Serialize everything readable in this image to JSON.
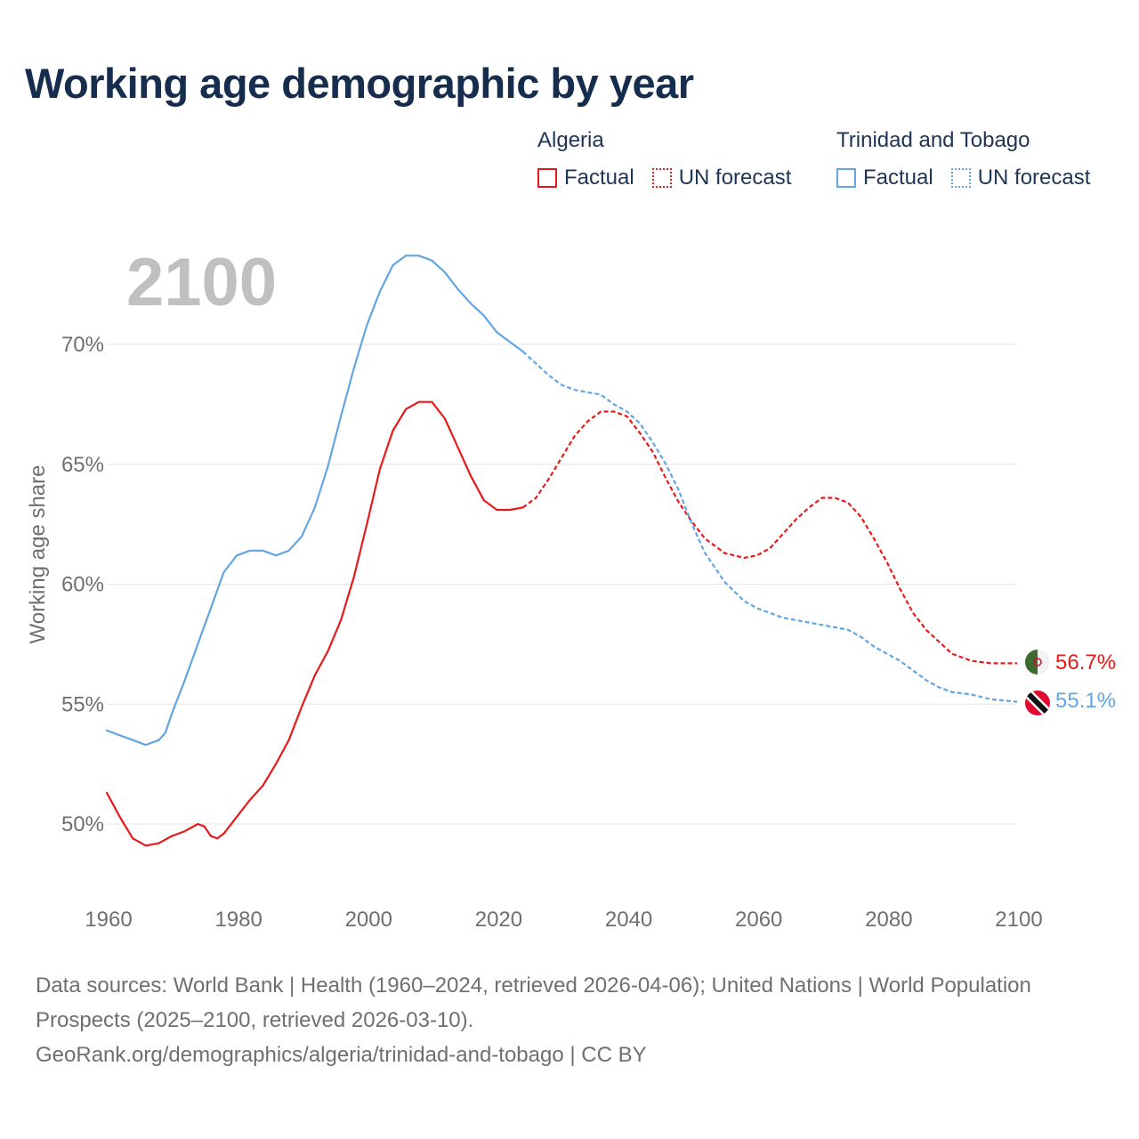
{
  "title": "Working age demographic by year",
  "legend": {
    "groups": [
      {
        "name": "Algeria",
        "color": "#e8191b",
        "items": [
          {
            "label": "Factual",
            "style": "solid"
          },
          {
            "label": "UN forecast",
            "style": "dotted"
          }
        ]
      },
      {
        "name": "Trinidad and Tobago",
        "color": "#63a5e3",
        "items": [
          {
            "label": "Factual",
            "style": "solid"
          },
          {
            "label": "UN forecast",
            "style": "dotted"
          }
        ]
      }
    ]
  },
  "year_overlay": "2100",
  "footer": {
    "sources": "Data sources: World Bank | Health (1960–2024, retrieved 2026-04-06); United Nations | World Population Prospects (2025–2100, retrieved 2026-03-10).",
    "credit": "GeoRank.org/demographics/algeria/trinidad-and-tobago | CC BY"
  },
  "chart_data": {
    "type": "line",
    "title": "Working age demographic by year",
    "xlabel": "",
    "ylabel": "Working age share",
    "xlim": [
      1960,
      2100
    ],
    "ylim": [
      47.5,
      75
    ],
    "x_ticks": [
      1960,
      1980,
      2000,
      2020,
      2040,
      2060,
      2080,
      2100
    ],
    "x_tick_labels": [
      "1960",
      "1980",
      "2000",
      "2020",
      "2040",
      "2060",
      "2080",
      "2100"
    ],
    "y_ticks": [
      50,
      55,
      60,
      65,
      70
    ],
    "y_tick_labels": [
      "50%",
      "55%",
      "60%",
      "65%",
      "70%"
    ],
    "grid": true,
    "forecast_start": 2024,
    "series": [
      {
        "name": "Algeria",
        "color": "#e8191b",
        "end_label": "56.7%",
        "flag": "algeria-flag",
        "x": [
          1960,
          1962,
          1964,
          1966,
          1968,
          1970,
          1972,
          1974,
          1975,
          1976,
          1977,
          1978,
          1980,
          1982,
          1984,
          1986,
          1988,
          1990,
          1992,
          1994,
          1996,
          1998,
          2000,
          2002,
          2004,
          2006,
          2008,
          2010,
          2012,
          2014,
          2016,
          2018,
          2020,
          2022,
          2024,
          2026,
          2028,
          2030,
          2032,
          2034,
          2036,
          2038,
          2040,
          2042,
          2044,
          2046,
          2048,
          2050,
          2052,
          2055,
          2058,
          2060,
          2062,
          2064,
          2066,
          2068,
          2070,
          2072,
          2074,
          2076,
          2078,
          2080,
          2082,
          2084,
          2086,
          2088,
          2090,
          2093,
          2096,
          2100
        ],
        "values": [
          51.3,
          50.3,
          49.4,
          49.1,
          49.2,
          49.5,
          49.7,
          50.0,
          49.9,
          49.5,
          49.4,
          49.6,
          50.3,
          51.0,
          51.6,
          52.5,
          53.5,
          54.9,
          56.2,
          57.2,
          58.5,
          60.3,
          62.5,
          64.8,
          66.4,
          67.3,
          67.6,
          67.6,
          66.9,
          65.7,
          64.5,
          63.5,
          63.1,
          63.1,
          63.2,
          63.6,
          64.4,
          65.3,
          66.2,
          66.8,
          67.2,
          67.2,
          67.0,
          66.3,
          65.5,
          64.4,
          63.4,
          62.6,
          61.9,
          61.3,
          61.1,
          61.2,
          61.5,
          62.1,
          62.7,
          63.2,
          63.6,
          63.6,
          63.4,
          62.8,
          61.9,
          60.9,
          59.8,
          58.8,
          58.1,
          57.6,
          57.1,
          56.8,
          56.7,
          56.7
        ]
      },
      {
        "name": "Trinidad and Tobago",
        "color": "#63a5e3",
        "end_label": "55.1%",
        "flag": "trinidad-and-tobago-flag",
        "x": [
          1960,
          1962,
          1964,
          1966,
          1968,
          1969,
          1970,
          1972,
          1974,
          1976,
          1978,
          1980,
          1982,
          1984,
          1986,
          1988,
          1990,
          1992,
          1994,
          1996,
          1998,
          2000,
          2002,
          2004,
          2006,
          2008,
          2010,
          2012,
          2014,
          2016,
          2018,
          2020,
          2022,
          2024,
          2026,
          2028,
          2030,
          2032,
          2034,
          2036,
          2038,
          2040,
          2042,
          2044,
          2046,
          2048,
          2050,
          2052,
          2055,
          2058,
          2060,
          2062,
          2064,
          2066,
          2068,
          2070,
          2072,
          2074,
          2076,
          2078,
          2080,
          2082,
          2084,
          2086,
          2088,
          2090,
          2093,
          2096,
          2100
        ],
        "values": [
          53.9,
          53.7,
          53.5,
          53.3,
          53.5,
          53.8,
          54.6,
          56.0,
          57.5,
          59.0,
          60.5,
          61.2,
          61.4,
          61.4,
          61.2,
          61.4,
          62.0,
          63.2,
          64.9,
          67.0,
          69.0,
          70.8,
          72.2,
          73.3,
          73.7,
          73.7,
          73.5,
          73.0,
          72.3,
          71.7,
          71.2,
          70.5,
          70.1,
          69.7,
          69.2,
          68.7,
          68.3,
          68.1,
          68.0,
          67.9,
          67.5,
          67.2,
          66.7,
          65.9,
          65.0,
          63.9,
          62.5,
          61.3,
          60.1,
          59.3,
          59.0,
          58.8,
          58.6,
          58.5,
          58.4,
          58.3,
          58.2,
          58.1,
          57.8,
          57.4,
          57.1,
          56.8,
          56.4,
          56.0,
          55.7,
          55.5,
          55.4,
          55.2,
          55.1
        ]
      }
    ]
  }
}
